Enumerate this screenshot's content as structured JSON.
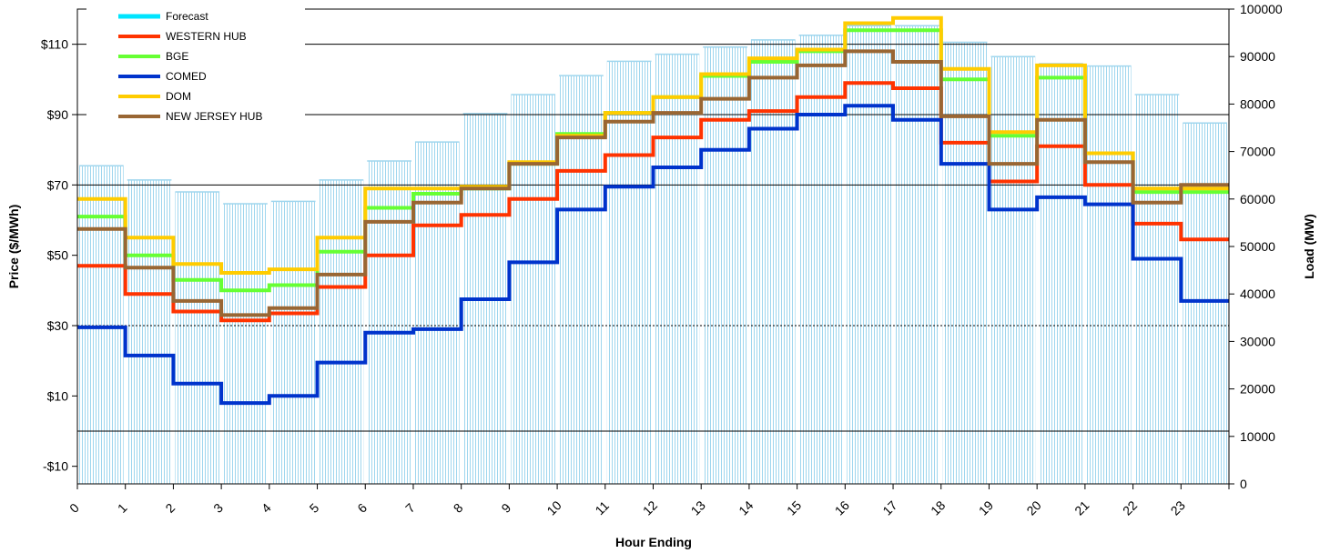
{
  "chart_data": {
    "type": "line",
    "step": true,
    "xlabel": "Hour Ending",
    "ylabel_left": "Price ($/MWh)",
    "ylabel_right": "Load (MW)",
    "x_ticks": [
      "0",
      "1",
      "2",
      "3",
      "4",
      "5",
      "6",
      "7",
      "8",
      "9",
      "10",
      "11",
      "12",
      "13",
      "14",
      "15",
      "16",
      "17",
      "18",
      "19",
      "20",
      "21",
      "22",
      "23"
    ],
    "left_axis": {
      "min": -15,
      "max": 120,
      "ticks": [
        -10,
        10,
        30,
        50,
        70,
        90,
        110
      ],
      "tick_labels": [
        "-$10",
        "$10",
        "$30",
        "$50",
        "$70",
        "$90",
        "$110"
      ]
    },
    "right_axis": {
      "min": 0,
      "max": 100000,
      "ticks": [
        0,
        10000,
        20000,
        30000,
        40000,
        50000,
        60000,
        70000,
        80000,
        90000,
        100000
      ],
      "tick_labels": [
        "0",
        "10000",
        "20000",
        "30000",
        "40000",
        "50000",
        "60000",
        "70000",
        "80000",
        "90000",
        "100000"
      ]
    },
    "gridlines_left": [
      0,
      30,
      70,
      90,
      110
    ],
    "legend_position": "top-left",
    "forecast": {
      "name": "Forecast",
      "color": "#00e5ff",
      "values": [
        67000,
        64000,
        61500,
        59000,
        59500,
        64000,
        68000,
        72000,
        78000,
        82000,
        86000,
        89000,
        90500,
        92000,
        93500,
        94500,
        96500,
        96500,
        93000,
        90000,
        88500,
        88000,
        82000,
        76000
      ]
    },
    "series": [
      {
        "name": "WESTERN HUB",
        "color": "#ff3300",
        "values": [
          47,
          39,
          34,
          31.5,
          33.5,
          41,
          50,
          58.5,
          61.5,
          66,
          74,
          78.5,
          83.5,
          88.5,
          91,
          95,
          99,
          97.5,
          82,
          71,
          81,
          70,
          59,
          54.5
        ]
      },
      {
        "name": "BGE",
        "color": "#66ff33",
        "values": [
          61,
          50,
          43,
          40,
          41.5,
          51,
          63.5,
          67.5,
          69,
          76,
          84.5,
          90.5,
          95,
          101,
          105,
          108,
          114,
          114,
          100,
          84,
          100.5,
          79,
          68,
          68
        ]
      },
      {
        "name": "COMED",
        "color": "#0033cc",
        "values": [
          29.5,
          21.5,
          13.5,
          8,
          10,
          19.5,
          28,
          29,
          37.5,
          48,
          63,
          69.5,
          75,
          80,
          86,
          90,
          92.5,
          88.5,
          76,
          63,
          66.5,
          64.5,
          49,
          37
        ]
      },
      {
        "name": "DOM",
        "color": "#ffcc00",
        "values": [
          66,
          55,
          47.5,
          45,
          46,
          55,
          69,
          69,
          69.5,
          76.5,
          84,
          90.5,
          95,
          101.5,
          106,
          108.5,
          116,
          117.5,
          103,
          85,
          104,
          79,
          69,
          69
        ]
      },
      {
        "name": "NEW JERSEY HUB",
        "color": "#996633",
        "values": [
          57.5,
          46.5,
          37,
          33,
          35,
          44.5,
          59.5,
          65,
          69,
          76,
          83.5,
          88,
          90.5,
          94.5,
          100.5,
          104,
          108,
          105,
          89.5,
          76,
          88.5,
          76.5,
          65,
          70
        ]
      }
    ]
  }
}
